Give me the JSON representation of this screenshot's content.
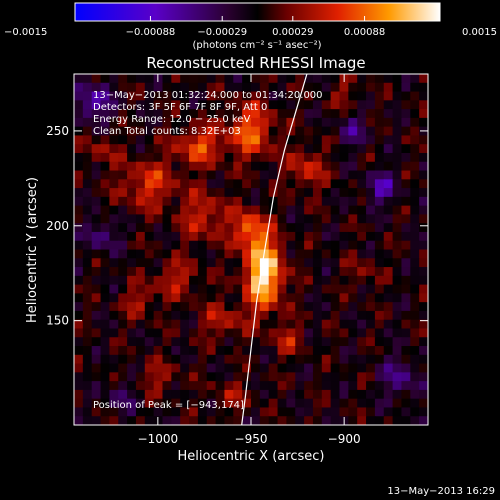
{
  "chart_data": {
    "type": "heatmap",
    "title": "Reconstructed RHESSI Image",
    "xlabel": "Heliocentric X (arcsec)",
    "ylabel": "Heliocentric Y (arcsec)",
    "xlim": [
      -1045,
      -855
    ],
    "ylim": [
      95,
      280
    ],
    "xticks": [
      -1000,
      -950,
      -900
    ],
    "yticks": [
      150,
      200,
      250
    ],
    "xtick_labels": [
      "−1000",
      "−950",
      "−900"
    ],
    "ytick_labels": [
      "150",
      "200",
      "250"
    ],
    "colorbar": {
      "range": [
        -0.0015,
        0.0015
      ],
      "ticks": [
        -0.0015,
        -0.00088,
        -0.00029,
        0.00029,
        0.00088,
        0.0015
      ],
      "tick_labels": [
        "−0.0015",
        "−0.00088",
        "−0.00029",
        "0.00029",
        "0.00088",
        "0.0015"
      ],
      "unit_label": "(photons cm⁻² s⁻¹ asec⁻²)"
    },
    "info_lines": [
      "13−May−2013 01:32:24.000 to 01:34:20.000",
      "Detectors: 3F 5F 6F 7F 8F 9F, Att 0",
      "Energy Range: 12.0 − 25.0 keV",
      "Clean     Total counts: 8.32E+03"
    ],
    "peak_label": "Position of Peak = [−943,174]",
    "peak": [
      -943,
      174
    ],
    "limb": [
      [
        -920,
        280
      ],
      [
        -926,
        260
      ],
      [
        -932,
        240
      ],
      [
        -938,
        215
      ],
      [
        -943,
        185
      ],
      [
        -947,
        160
      ],
      [
        -950,
        135
      ],
      [
        -953,
        110
      ],
      [
        -955,
        95
      ]
    ],
    "peak_value": 0.0015,
    "sources": [
      {
        "x": -943,
        "y": 175,
        "sx": 7,
        "sy": 13,
        "amp": 1.0
      },
      {
        "x": -951,
        "y": 198,
        "sx": 6,
        "sy": 7,
        "amp": 0.55
      },
      {
        "x": -978,
        "y": 242,
        "sx": 9,
        "sy": 7,
        "amp": 0.5
      },
      {
        "x": -950,
        "y": 250,
        "sx": 9,
        "sy": 10,
        "amp": 0.55
      },
      {
        "x": -1005,
        "y": 222,
        "sx": 11,
        "sy": 9,
        "amp": 0.42
      },
      {
        "x": -975,
        "y": 205,
        "sx": 9,
        "sy": 9,
        "amp": 0.38
      },
      {
        "x": -920,
        "y": 230,
        "sx": 7,
        "sy": 8,
        "amp": 0.38
      },
      {
        "x": -990,
        "y": 172,
        "sx": 9,
        "sy": 7,
        "amp": 0.32
      },
      {
        "x": -1010,
        "y": 160,
        "sx": 6,
        "sy": 6,
        "amp": 0.3
      },
      {
        "x": -965,
        "y": 150,
        "sx": 9,
        "sy": 7,
        "amp": 0.3
      },
      {
        "x": -1030,
        "y": 240,
        "sx": 6,
        "sy": 6,
        "amp": 0.25
      },
      {
        "x": -930,
        "y": 140,
        "sx": 6,
        "sy": 6,
        "amp": 0.3
      },
      {
        "x": -1000,
        "y": 120,
        "sx": 8,
        "sy": 6,
        "amp": 0.25
      },
      {
        "x": -960,
        "y": 110,
        "sx": 8,
        "sy": 6,
        "amp": 0.22
      },
      {
        "x": -900,
        "y": 270,
        "sx": 6,
        "sy": 6,
        "amp": 0.2
      },
      {
        "x": -890,
        "y": 175,
        "sx": 6,
        "sy": 6,
        "amp": 0.2
      },
      {
        "x": -880,
        "y": 220,
        "sx": 6,
        "sy": 6,
        "amp": -0.45
      },
      {
        "x": -1035,
        "y": 265,
        "sx": 7,
        "sy": 7,
        "amp": -0.5
      },
      {
        "x": -1030,
        "y": 195,
        "sx": 6,
        "sy": 6,
        "amp": -0.35
      },
      {
        "x": -870,
        "y": 120,
        "sx": 7,
        "sy": 8,
        "amp": -0.35
      },
      {
        "x": -895,
        "y": 250,
        "sx": 6,
        "sy": 6,
        "amp": -0.3
      },
      {
        "x": -1020,
        "y": 110,
        "sx": 6,
        "sy": 6,
        "amp": -0.25
      }
    ]
  },
  "footer": {
    "timestamp": "13−May−2013 16:29"
  }
}
